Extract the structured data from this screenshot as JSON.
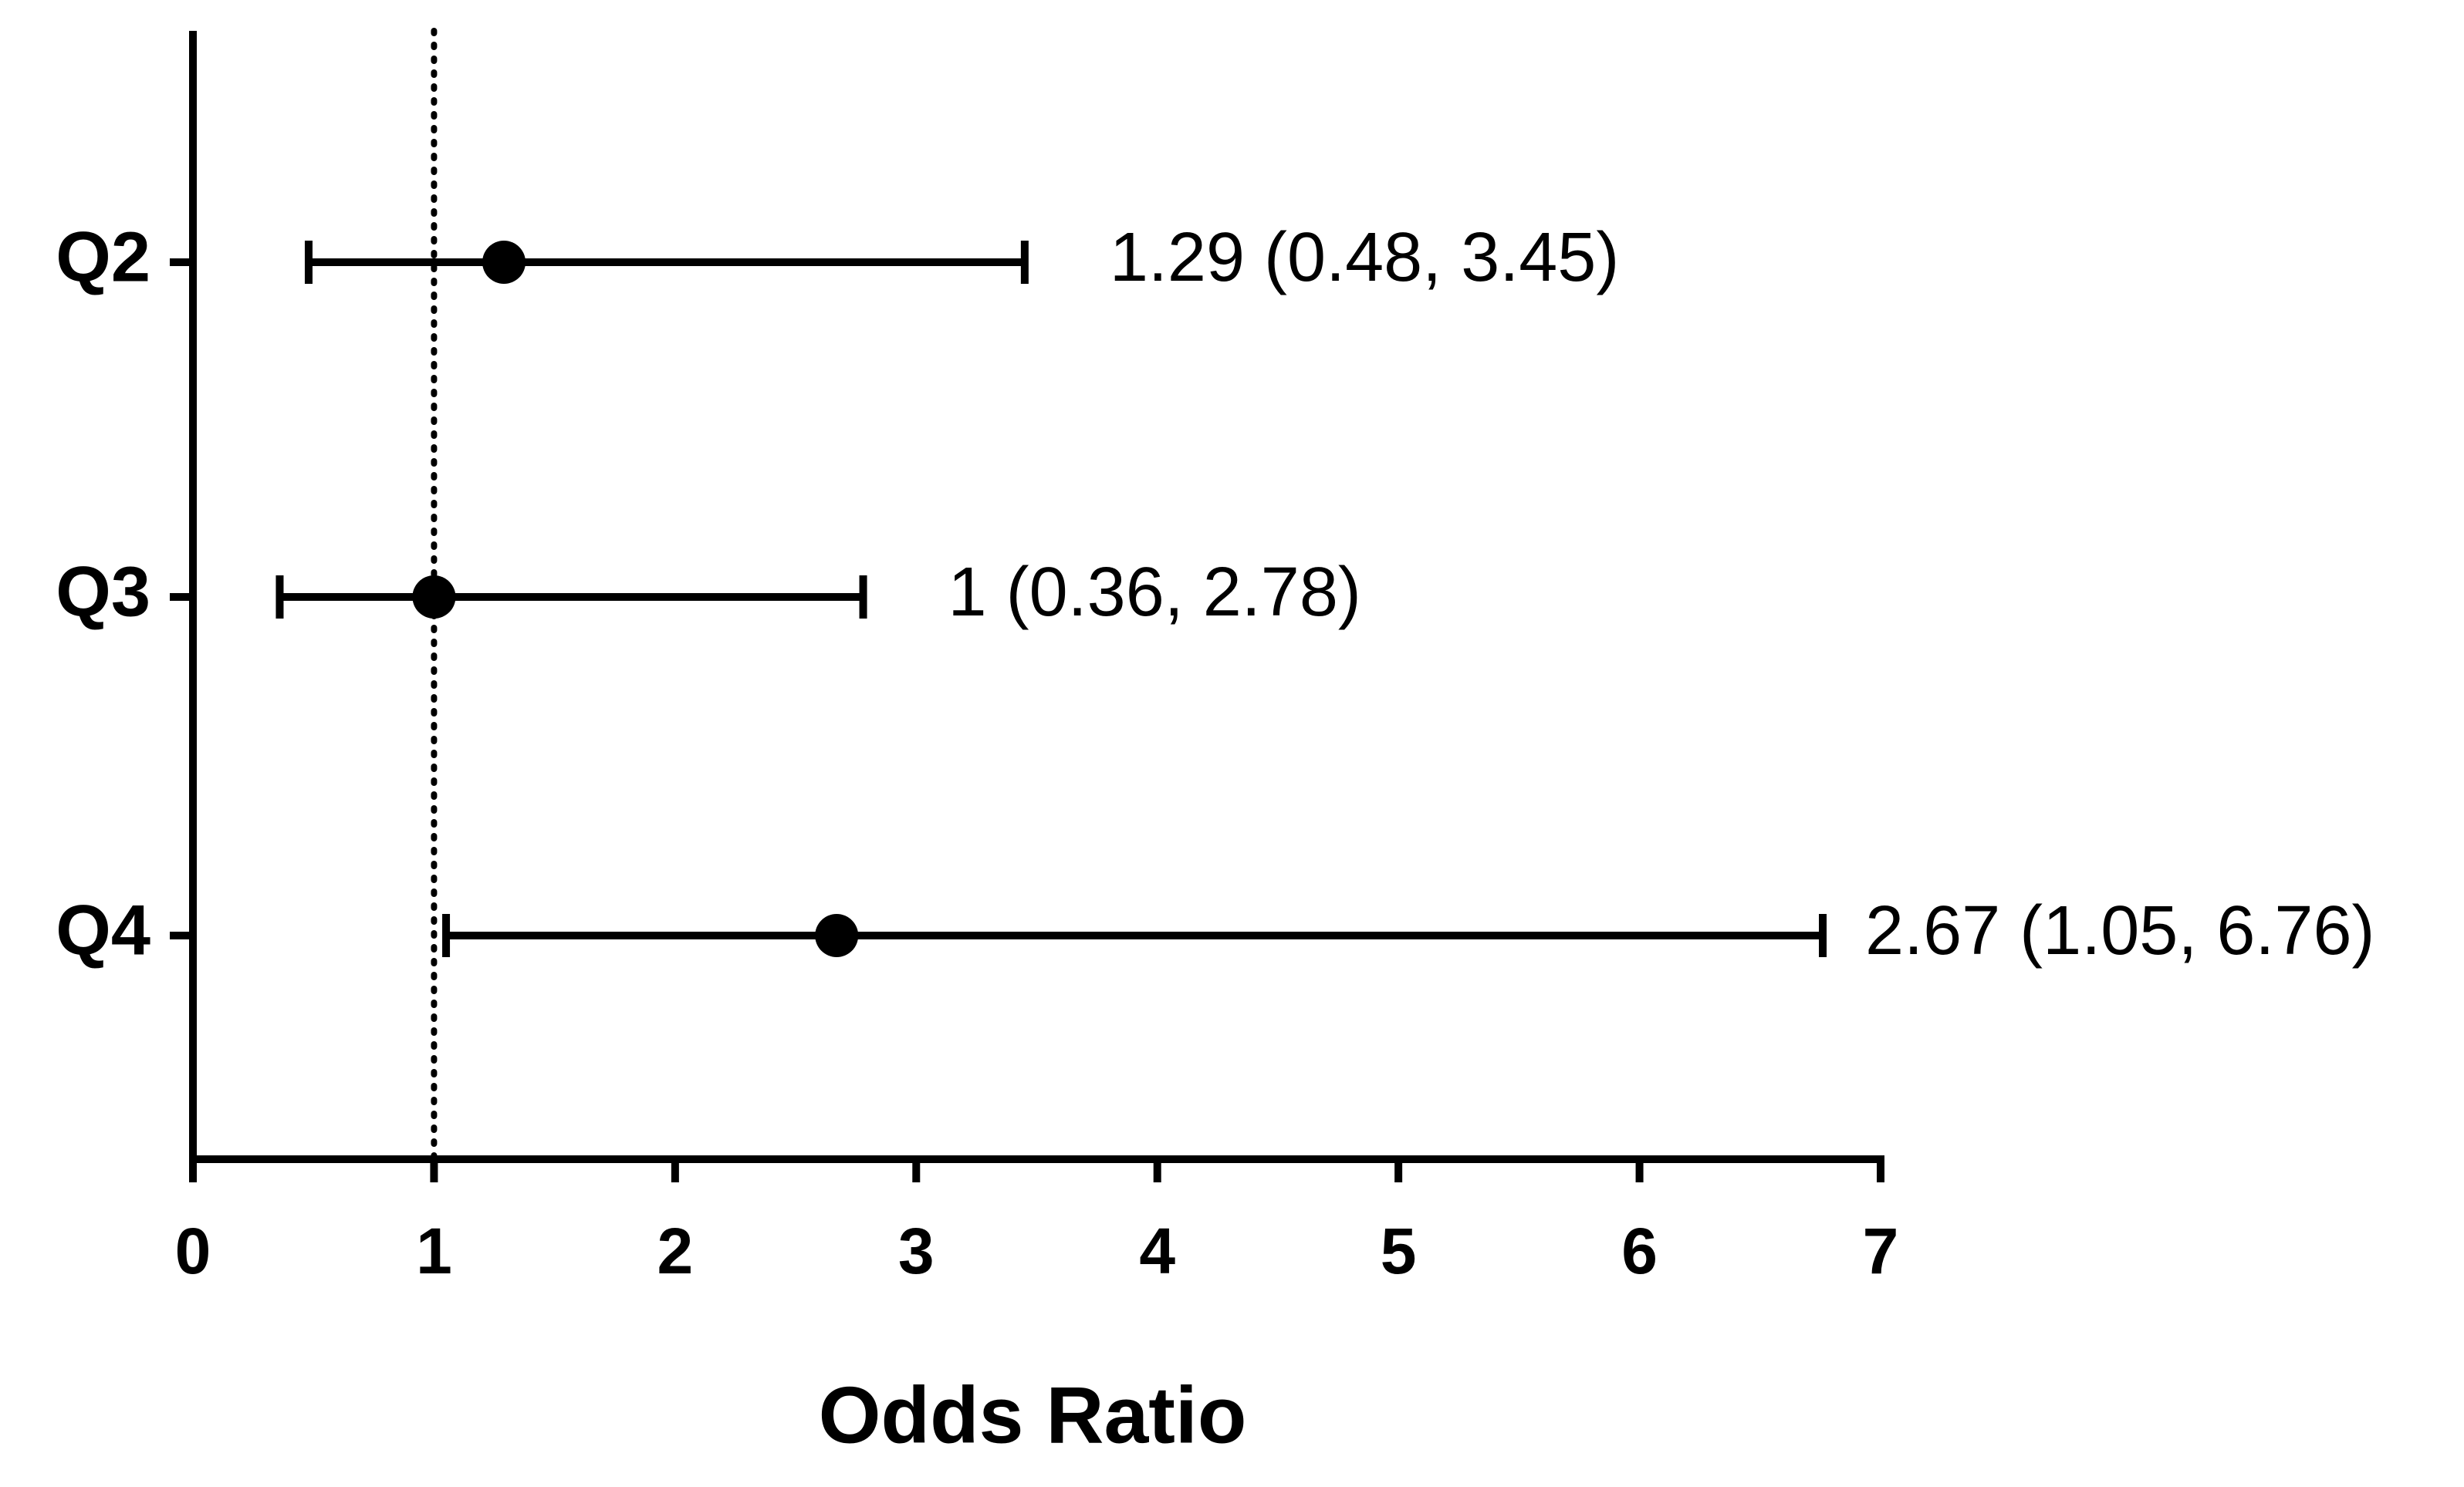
{
  "chart_data": {
    "type": "forest",
    "xlabel": "Odds Ratio",
    "categories": [
      "Q2",
      "Q3",
      "Q4"
    ],
    "values": [
      1.29,
      1,
      2.67
    ],
    "lower": [
      0.48,
      0.36,
      1.05
    ],
    "upper": [
      3.45,
      2.78,
      6.76
    ],
    "value_labels": [
      "1.29 (0.48, 3.45)",
      "1 (0.36, 2.78)",
      "2.67 (1.05, 6.76)"
    ],
    "reference_line": 1,
    "xlim": [
      0,
      7
    ],
    "xticks": [
      0,
      1,
      2,
      3,
      4,
      5,
      6,
      7
    ],
    "color": "#000000"
  }
}
